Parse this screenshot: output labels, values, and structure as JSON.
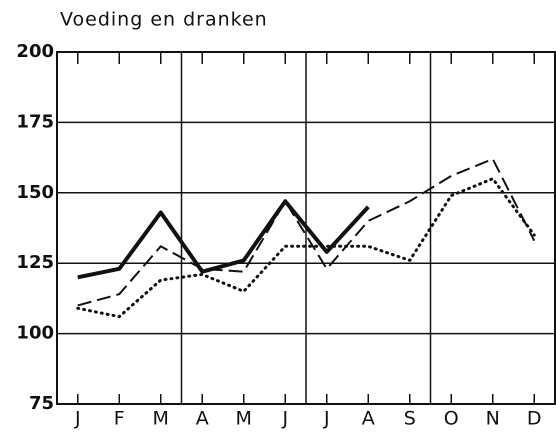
{
  "chart_data": {
    "type": "line",
    "title": "Voeding en dranken",
    "categories": [
      "J",
      "F",
      "M",
      "A",
      "M",
      "J",
      "J",
      "A",
      "S",
      "O",
      "N",
      "D"
    ],
    "series": [
      {
        "color": "#111111",
        "style": "solid",
        "values": [
          120,
          123,
          143,
          122,
          126,
          147,
          129,
          145,
          null,
          null,
          null,
          null
        ]
      },
      {
        "color": "#111111",
        "style": "dashed",
        "values": [
          110,
          114,
          131,
          123,
          122,
          147,
          123,
          140,
          147,
          156,
          162,
          133
        ]
      },
      {
        "color": "#111111",
        "style": "dotted",
        "values": [
          109,
          106,
          119,
          121,
          115,
          131,
          131,
          131,
          126,
          149,
          155,
          135
        ]
      }
    ],
    "ylim": [
      75,
      200
    ],
    "yticks": [
      75,
      100,
      125,
      150,
      175,
      200
    ],
    "grid": true
  }
}
